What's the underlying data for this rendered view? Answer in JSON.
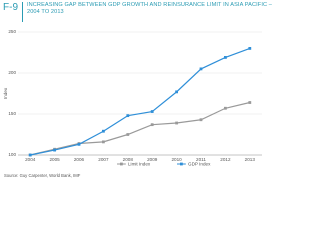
{
  "chart_data": {
    "type": "line",
    "figure_label": "F-9",
    "title": "INCREASING GAP BETWEEN GDP GROWTH AND REINSURANCE LIMIT IN ASIA PACIFIC – 2004 TO 2013",
    "y_label": "Index",
    "categories": [
      "2004",
      "2005",
      "2006",
      "2007",
      "2008",
      "2009",
      "2010",
      "2011",
      "2012",
      "2013"
    ],
    "series": [
      {
        "name": "Limit Index",
        "color": "#9a9a9a",
        "values": [
          100,
          107,
          114,
          116,
          125,
          137,
          139,
          143,
          157,
          164
        ]
      },
      {
        "name": "GDP Index",
        "color": "#2f8fd8",
        "values": [
          100,
          106,
          113,
          129,
          148,
          153,
          177,
          205,
          219,
          230
        ]
      }
    ],
    "ylim": [
      100,
      250
    ],
    "yticks": [
      100,
      150,
      200,
      250
    ],
    "grid": true,
    "legend": "bottom",
    "source": "Source: Guy Carpenter, World Bank, IMF"
  }
}
